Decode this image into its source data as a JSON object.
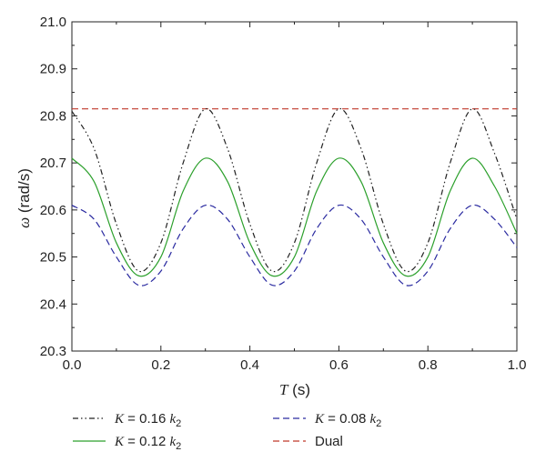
{
  "chart_data": {
    "type": "line",
    "title": "",
    "xlabel": "T (s)",
    "ylabel": "ω (rad/s)",
    "xlim": [
      0.0,
      1.0
    ],
    "ylim": [
      20.3,
      21.0
    ],
    "grid": false,
    "legend_position": "bottom",
    "x_ticks": [
      "0.0",
      "0.2",
      "0.4",
      "0.6",
      "0.8",
      "1.0"
    ],
    "y_ticks": [
      "20.3",
      "20.4",
      "20.5",
      "20.6",
      "20.7",
      "20.8",
      "20.9",
      "21.0"
    ],
    "series": [
      {
        "name": "K = 0.16 k2",
        "color": "#222222",
        "dash": "dash-dot-dot",
        "x": [
          0.0,
          0.05,
          0.1,
          0.15,
          0.2,
          0.25,
          0.3,
          0.35,
          0.4,
          0.45,
          0.5,
          0.55,
          0.6,
          0.65,
          0.7,
          0.75,
          0.8,
          0.85,
          0.9,
          0.95,
          1.0
        ],
        "y": [
          20.81,
          20.73,
          20.57,
          20.47,
          20.53,
          20.7,
          20.815,
          20.73,
          20.57,
          20.47,
          20.53,
          20.7,
          20.815,
          20.73,
          20.57,
          20.47,
          20.53,
          20.7,
          20.815,
          20.72,
          20.58
        ]
      },
      {
        "name": "K = 0.12 k2",
        "color": "#2ca02c",
        "dash": "solid",
        "x": [
          0.0,
          0.05,
          0.1,
          0.15,
          0.2,
          0.25,
          0.3,
          0.35,
          0.4,
          0.45,
          0.5,
          0.55,
          0.6,
          0.65,
          0.7,
          0.75,
          0.8,
          0.85,
          0.9,
          0.95,
          1.0
        ],
        "y": [
          20.71,
          20.66,
          20.53,
          20.46,
          20.5,
          20.64,
          20.71,
          20.66,
          20.53,
          20.46,
          20.5,
          20.64,
          20.71,
          20.66,
          20.53,
          20.46,
          20.5,
          20.64,
          20.71,
          20.65,
          20.55
        ]
      },
      {
        "name": "K = 0.08 k2",
        "color": "#2a2aa0",
        "dash": "dashed",
        "x": [
          0.0,
          0.05,
          0.1,
          0.15,
          0.2,
          0.25,
          0.3,
          0.35,
          0.4,
          0.45,
          0.5,
          0.55,
          0.6,
          0.65,
          0.7,
          0.75,
          0.8,
          0.85,
          0.9,
          0.95,
          1.0
        ],
        "y": [
          20.61,
          20.58,
          20.5,
          20.44,
          20.47,
          20.56,
          20.61,
          20.58,
          20.5,
          20.44,
          20.47,
          20.56,
          20.61,
          20.58,
          20.5,
          20.44,
          20.47,
          20.56,
          20.61,
          20.58,
          20.52
        ]
      },
      {
        "name": "Dual",
        "color": "#c0392b",
        "dash": "dashed",
        "x": [
          0.0,
          1.0
        ],
        "y": [
          20.815,
          20.815
        ]
      }
    ]
  },
  "legend": {
    "entries": [
      {
        "prefix": "K",
        "eq": " = 0.16 ",
        "k": "k",
        "sub": "2",
        "color": "#222222",
        "dash": "dash-dot-dot"
      },
      {
        "prefix": "K",
        "eq": " = 0.12 ",
        "k": "k",
        "sub": "2",
        "color": "#2ca02c",
        "dash": "solid"
      },
      {
        "prefix": "K",
        "eq": " = 0.08 ",
        "k": "k",
        "sub": "2",
        "color": "#2a2aa0",
        "dash": "dashed"
      },
      {
        "prefix": "",
        "eq": "",
        "k": "",
        "sub": "",
        "text": "Dual",
        "color": "#c0392b",
        "dash": "dashed"
      }
    ]
  },
  "axis_labels": {
    "x_symbol": "T",
    "x_unit": " (s)",
    "y_symbol": "ω",
    "y_unit": " (rad/s)"
  }
}
